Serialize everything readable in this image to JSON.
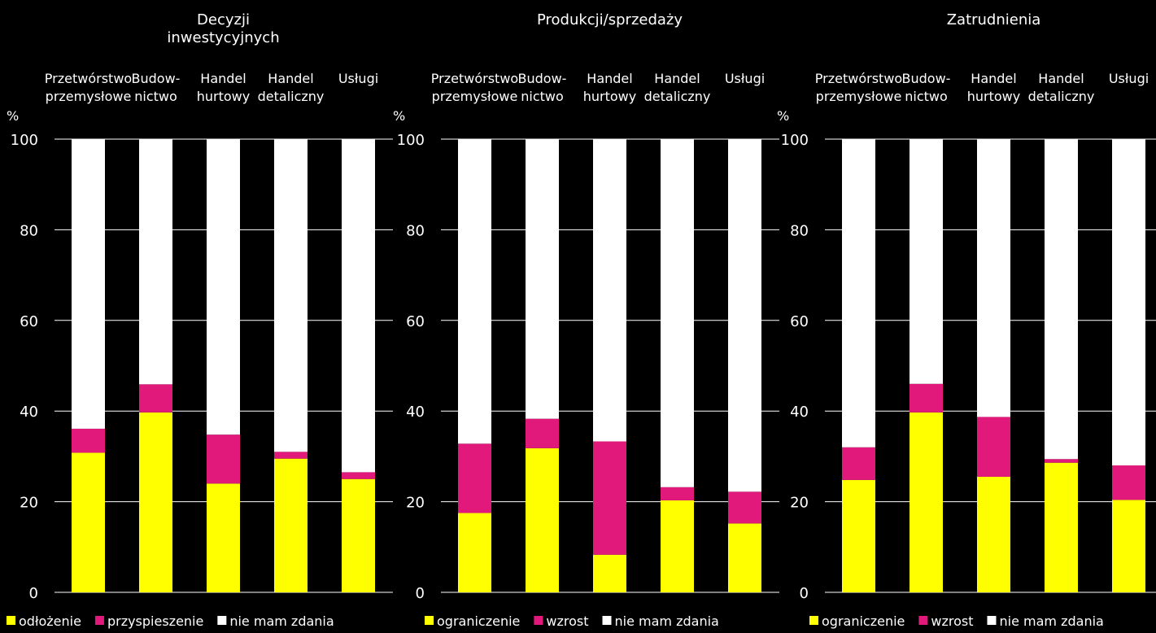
{
  "colors": {
    "background": "#000000",
    "text": "#ffffff",
    "yellow": "#ffff00",
    "magenta": "#e0197a",
    "white": "#ffffff",
    "grid": "#ffffff"
  },
  "chart_data": [
    {
      "type": "bar",
      "stacked": true,
      "title": [
        "Decyzji",
        "inwestycyjnych"
      ],
      "ylabel": "%",
      "ylim": [
        0,
        100
      ],
      "yticks": [
        0,
        20,
        40,
        60,
        80,
        100
      ],
      "grid": true,
      "legend_position": "bottom",
      "categories": [
        [
          "Przetwórstwo",
          "przemysłowe"
        ],
        [
          "Budow-",
          "nictwo"
        ],
        [
          "Handel",
          "hurtowy"
        ],
        [
          "Handel",
          "detaliczny"
        ],
        [
          "Usługi"
        ]
      ],
      "series": [
        {
          "name": "odłożenie",
          "color": "#ffff00",
          "values": [
            30.8,
            39.7,
            24.0,
            29.5,
            25.0
          ]
        },
        {
          "name": "przyspieszenie",
          "color": "#e0197a",
          "values": [
            5.3,
            6.2,
            10.8,
            1.5,
            1.5
          ]
        },
        {
          "name": "nie mam zdania",
          "color": "#ffffff",
          "values": [
            63.9,
            54.1,
            65.2,
            69.0,
            73.5
          ]
        }
      ]
    },
    {
      "type": "bar",
      "stacked": true,
      "title": [
        "Produkcji/sprzedaży"
      ],
      "ylabel": "%",
      "ylim": [
        0,
        100
      ],
      "yticks": [
        0,
        20,
        40,
        60,
        80,
        100
      ],
      "grid": true,
      "legend_position": "bottom",
      "categories": [
        [
          "Przetwórstwo",
          "przemysłowe"
        ],
        [
          "Budow-",
          "nictwo"
        ],
        [
          "Handel",
          "hurtowy"
        ],
        [
          "Handel",
          "detaliczny"
        ],
        [
          "Usługi"
        ]
      ],
      "series": [
        {
          "name": "ograniczenie",
          "color": "#ffff00",
          "values": [
            17.5,
            31.8,
            8.3,
            20.3,
            15.2
          ]
        },
        {
          "name": "wzrost",
          "color": "#e0197a",
          "values": [
            15.3,
            6.5,
            25.0,
            2.9,
            7.0
          ]
        },
        {
          "name": "nie mam zdania",
          "color": "#ffffff",
          "values": [
            67.2,
            61.7,
            66.7,
            76.8,
            77.8
          ]
        }
      ]
    },
    {
      "type": "bar",
      "stacked": true,
      "title": [
        "Zatrudnienia"
      ],
      "ylabel": "%",
      "ylim": [
        0,
        100
      ],
      "yticks": [
        0,
        20,
        40,
        60,
        80,
        100
      ],
      "grid": true,
      "legend_position": "bottom",
      "categories": [
        [
          "Przetwórstwo",
          "przemysłowe"
        ],
        [
          "Budow-",
          "nictwo"
        ],
        [
          "Handel",
          "hurtowy"
        ],
        [
          "Handel",
          "detaliczny"
        ],
        [
          "Usługi"
        ]
      ],
      "series": [
        {
          "name": "ograniczenie",
          "color": "#ffff00",
          "values": [
            24.8,
            39.7,
            25.5,
            28.6,
            20.4
          ]
        },
        {
          "name": "wzrost",
          "color": "#e0197a",
          "values": [
            7.2,
            6.3,
            13.2,
            0.8,
            7.6
          ]
        },
        {
          "name": "nie mam zdania",
          "color": "#ffffff",
          "values": [
            68.0,
            54.0,
            61.3,
            70.6,
            72.0
          ]
        }
      ]
    }
  ]
}
